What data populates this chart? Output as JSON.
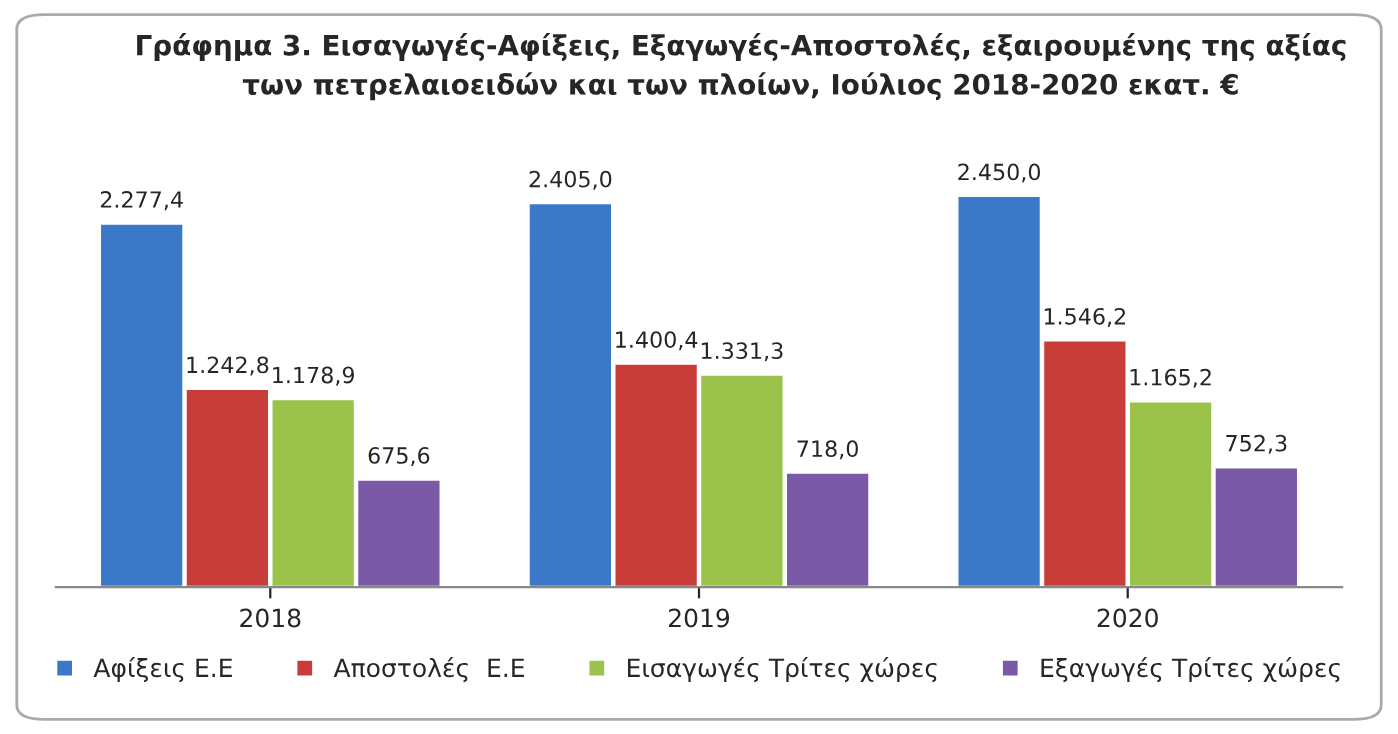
{
  "chart_data": {
    "type": "bar",
    "title": "Γράφημα 3. Εισαγωγές-Αφίξεις, Εξαγωγές-Αποστολές, εξαιρουμένης της αξίας\nτων πετρελαιοειδών και των πλοίων, Ιούλιος 2018-2020 εκατ. €",
    "categories": [
      "2018",
      "2019",
      "2020"
    ],
    "series": [
      {
        "name": "Αφίξεις Ε.Ε",
        "color": "#3c78c8",
        "values": [
          2277.4,
          2405.0,
          2450.0
        ],
        "value_labels": [
          "2.277,4",
          "2.405,0",
          "2.450,0"
        ]
      },
      {
        "name": "Αποστολές  Ε.Ε",
        "color": "#c83c3a",
        "values": [
          1242.8,
          1400.4,
          1546.2
        ],
        "value_labels": [
          "1.242,8",
          "1.400,4",
          "1.546,2"
        ]
      },
      {
        "name": "Εισαγωγές Τρίτες χώρες",
        "color": "#9bc24a",
        "values": [
          1178.9,
          1331.3,
          1165.2
        ],
        "value_labels": [
          "1.178,9",
          "1.331,3",
          "1.165,2"
        ]
      },
      {
        "name": "Εξαγωγές Τρίτες χώρες",
        "color": "#7a5aa6",
        "values": [
          675.6,
          718.0,
          752.3
        ],
        "value_labels": [
          "675,6",
          "718,0",
          "752,3"
        ]
      }
    ],
    "legend": "bottom",
    "grid": false,
    "tick_labels": "x"
  }
}
